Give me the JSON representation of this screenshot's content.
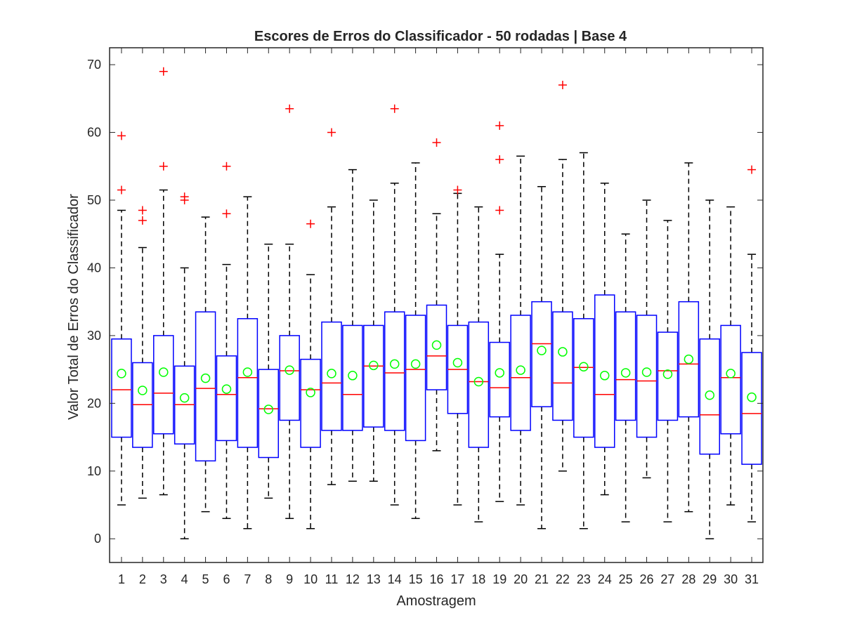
{
  "chart_data": {
    "type": "boxplot",
    "title": "Escores de Erros do Classificador - 50 rodadas | Base 4",
    "xlabel": "Amostragem",
    "ylabel": "Valor Total de Erros do Classificador",
    "ylim": [
      -3.5,
      72.5
    ],
    "yticks": [
      0,
      10,
      20,
      30,
      40,
      50,
      60,
      70
    ],
    "grid": false,
    "colors": {
      "box": "#0000ff",
      "median": "#ff0000",
      "outlier": "#ff0000",
      "mean_marker": "#00ff00",
      "whisker": "#000000",
      "axes": "#262626"
    },
    "categories": [
      "1",
      "2",
      "3",
      "4",
      "5",
      "6",
      "7",
      "8",
      "9",
      "10",
      "11",
      "12",
      "13",
      "14",
      "15",
      "16",
      "17",
      "18",
      "19",
      "20",
      "21",
      "22",
      "23",
      "24",
      "25",
      "26",
      "27",
      "28",
      "29",
      "30",
      "31"
    ],
    "boxes": [
      {
        "lower_whisker": 5,
        "q1": 15,
        "median": 22,
        "q3": 29.5,
        "upper_whisker": 48.5,
        "mean": 24.4,
        "outliers": [
          51.5,
          59.5
        ]
      },
      {
        "lower_whisker": 6,
        "q1": 13.5,
        "median": 19.8,
        "q3": 26,
        "upper_whisker": 43,
        "mean": 21.9,
        "outliers": [
          47,
          48.5
        ]
      },
      {
        "lower_whisker": 6.5,
        "q1": 15.5,
        "median": 21.5,
        "q3": 30,
        "upper_whisker": 51.5,
        "mean": 24.6,
        "outliers": [
          55,
          69
        ]
      },
      {
        "lower_whisker": 0,
        "q1": 14,
        "median": 19.8,
        "q3": 25.5,
        "upper_whisker": 40,
        "mean": 20.8,
        "outliers": [
          50,
          50.5
        ]
      },
      {
        "lower_whisker": 4,
        "q1": 11.5,
        "median": 22.2,
        "q3": 33.5,
        "upper_whisker": 47.5,
        "mean": 23.7,
        "outliers": []
      },
      {
        "lower_whisker": 3,
        "q1": 14.5,
        "median": 21.3,
        "q3": 27,
        "upper_whisker": 40.5,
        "mean": 22.1,
        "outliers": [
          48,
          55
        ]
      },
      {
        "lower_whisker": 1.5,
        "q1": 13.5,
        "median": 23.8,
        "q3": 32.5,
        "upper_whisker": 50.5,
        "mean": 24.6,
        "outliers": []
      },
      {
        "lower_whisker": 6,
        "q1": 12,
        "median": 19.2,
        "q3": 25,
        "upper_whisker": 43.5,
        "mean": 19.1,
        "outliers": []
      },
      {
        "lower_whisker": 3,
        "q1": 17.5,
        "median": 24.8,
        "q3": 30,
        "upper_whisker": 43.5,
        "mean": 24.9,
        "outliers": [
          63.5
        ]
      },
      {
        "lower_whisker": 1.5,
        "q1": 13.5,
        "median": 22,
        "q3": 26.5,
        "upper_whisker": 39,
        "mean": 21.6,
        "outliers": [
          46.5
        ]
      },
      {
        "lower_whisker": 8,
        "q1": 16,
        "median": 23,
        "q3": 32,
        "upper_whisker": 49,
        "mean": 24.4,
        "outliers": [
          60
        ]
      },
      {
        "lower_whisker": 8.5,
        "q1": 16,
        "median": 21.3,
        "q3": 31.5,
        "upper_whisker": 54.5,
        "mean": 24.1,
        "outliers": []
      },
      {
        "lower_whisker": 8.5,
        "q1": 16.5,
        "median": 25.5,
        "q3": 31.5,
        "upper_whisker": 50,
        "mean": 25.6,
        "outliers": []
      },
      {
        "lower_whisker": 5,
        "q1": 16,
        "median": 24.5,
        "q3": 33.5,
        "upper_whisker": 52.5,
        "mean": 25.8,
        "outliers": [
          63.5
        ]
      },
      {
        "lower_whisker": 3,
        "q1": 14.5,
        "median": 25,
        "q3": 33,
        "upper_whisker": 55.5,
        "mean": 25.8,
        "outliers": []
      },
      {
        "lower_whisker": 13,
        "q1": 22,
        "median": 27,
        "q3": 34.5,
        "upper_whisker": 48,
        "mean": 28.6,
        "outliers": [
          58.5
        ]
      },
      {
        "lower_whisker": 5,
        "q1": 18.5,
        "median": 25,
        "q3": 31.5,
        "upper_whisker": 51,
        "mean": 26,
        "outliers": [
          51.5
        ]
      },
      {
        "lower_whisker": 2.5,
        "q1": 13.5,
        "median": 23.2,
        "q3": 32,
        "upper_whisker": 49,
        "mean": 23.2,
        "outliers": []
      },
      {
        "lower_whisker": 5.5,
        "q1": 18,
        "median": 22.3,
        "q3": 29,
        "upper_whisker": 42,
        "mean": 24.5,
        "outliers": [
          48.5,
          56,
          61
        ]
      },
      {
        "lower_whisker": 5,
        "q1": 16,
        "median": 23.8,
        "q3": 33,
        "upper_whisker": 56.5,
        "mean": 24.9,
        "outliers": []
      },
      {
        "lower_whisker": 1.5,
        "q1": 19.5,
        "median": 28.8,
        "q3": 35,
        "upper_whisker": 52,
        "mean": 27.8,
        "outliers": []
      },
      {
        "lower_whisker": 10,
        "q1": 17.5,
        "median": 23,
        "q3": 33.5,
        "upper_whisker": 56,
        "mean": 27.6,
        "outliers": [
          67
        ]
      },
      {
        "lower_whisker": 1.5,
        "q1": 15,
        "median": 25.3,
        "q3": 32.5,
        "upper_whisker": 57,
        "mean": 25.4,
        "outliers": []
      },
      {
        "lower_whisker": 6.5,
        "q1": 13.5,
        "median": 21.3,
        "q3": 36,
        "upper_whisker": 52.5,
        "mean": 24.1,
        "outliers": []
      },
      {
        "lower_whisker": 2.5,
        "q1": 17.5,
        "median": 23.5,
        "q3": 33.5,
        "upper_whisker": 45,
        "mean": 24.5,
        "outliers": []
      },
      {
        "lower_whisker": 9,
        "q1": 15,
        "median": 23.3,
        "q3": 33,
        "upper_whisker": 50,
        "mean": 24.6,
        "outliers": []
      },
      {
        "lower_whisker": 2.5,
        "q1": 17.5,
        "median": 24.8,
        "q3": 30.5,
        "upper_whisker": 47,
        "mean": 24.3,
        "outliers": []
      },
      {
        "lower_whisker": 4,
        "q1": 18,
        "median": 25.8,
        "q3": 35,
        "upper_whisker": 55.5,
        "mean": 26.5,
        "outliers": []
      },
      {
        "lower_whisker": 0,
        "q1": 12.5,
        "median": 18.3,
        "q3": 29.5,
        "upper_whisker": 50,
        "mean": 21.2,
        "outliers": []
      },
      {
        "lower_whisker": 5,
        "q1": 15.5,
        "median": 23.8,
        "q3": 31.5,
        "upper_whisker": 49,
        "mean": 24.4,
        "outliers": []
      },
      {
        "lower_whisker": 2.5,
        "q1": 11,
        "median": 18.5,
        "q3": 27.5,
        "upper_whisker": 42,
        "mean": 20.9,
        "outliers": [
          54.5
        ]
      }
    ]
  }
}
